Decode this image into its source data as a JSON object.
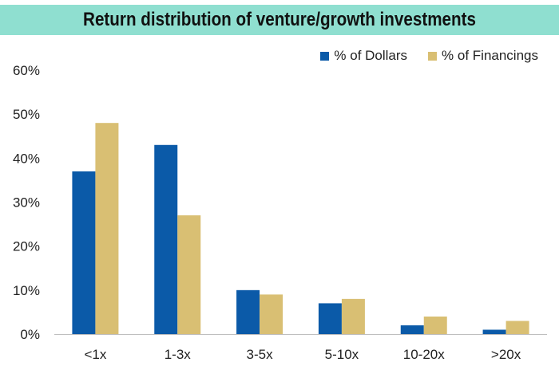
{
  "chart_data": {
    "type": "bar",
    "title": "Return distribution of venture/growth investments",
    "categories": [
      "<1x",
      "1-3x",
      "3-5x",
      "5-10x",
      "10-20x",
      ">20x"
    ],
    "series": [
      {
        "name": "% of Dollars",
        "color": "#0b5aa8",
        "values": [
          37,
          43,
          10,
          7,
          2,
          1
        ]
      },
      {
        "name": "% of Financings",
        "color": "#d9bf73",
        "values": [
          48,
          27,
          9,
          8,
          4,
          3
        ]
      }
    ],
    "y_ticks": [
      "0%",
      "10%",
      "20%",
      "30%",
      "40%",
      "50%",
      "60%"
    ],
    "ylim": [
      0,
      60
    ],
    "grid": false,
    "legend_position": "top-right"
  }
}
